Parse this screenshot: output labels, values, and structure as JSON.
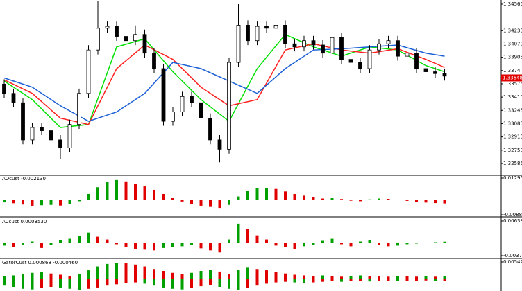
{
  "chart_data": [
    {
      "type": "candlestick",
      "open": [
        1.33571,
        1.33456,
        1.3334,
        1.32878,
        1.33032,
        1.32993,
        1.32878,
        1.32778,
        1.3307,
        1.33456,
        1.33995,
        1.34265,
        1.34288,
        1.34164,
        1.34111,
        1.34188,
        1.33956,
        1.33764,
        1.33109,
        1.33225,
        1.33417,
        1.3334,
        1.33148,
        1.32878,
        1.32762,
        1.33841,
        1.34303,
        1.34111,
        1.34288,
        1.34265,
        1.34303,
        1.34072,
        1.34033,
        1.34111,
        1.34057,
        1.33956,
        1.34149,
        1.33879,
        1.33841,
        1.33764,
        1.33995,
        1.34072,
        1.34111,
        1.33918,
        1.33956,
        1.33764,
        1.33725,
        1.33702
      ],
      "high": [
        1.33631,
        1.33516,
        1.334,
        1.33092,
        1.33092,
        1.33053,
        1.32938,
        1.3313,
        1.33516,
        1.34055,
        1.346,
        1.34348,
        1.34348,
        1.34224,
        1.343,
        1.34248,
        1.34016,
        1.33824,
        1.33285,
        1.33477,
        1.33477,
        1.334,
        1.33208,
        1.32938,
        1.33901,
        1.34565,
        1.34363,
        1.34348,
        1.34348,
        1.34363,
        1.34363,
        1.34132,
        1.34171,
        1.34171,
        1.34117,
        1.343,
        1.34209,
        1.33939,
        1.33901,
        1.34055,
        1.34132,
        1.34171,
        1.34171,
        1.34016,
        1.34016,
        1.33824,
        1.33785,
        1.33762
      ],
      "low": [
        1.33401,
        1.33285,
        1.32823,
        1.32823,
        1.32938,
        1.32823,
        1.3264,
        1.32723,
        1.33015,
        1.33401,
        1.3394,
        1.3421,
        1.34109,
        1.34056,
        1.34056,
        1.33901,
        1.33709,
        1.33054,
        1.33054,
        1.3317,
        1.33285,
        1.33093,
        1.32823,
        1.326,
        1.32707,
        1.33786,
        1.34056,
        1.34056,
        1.3421,
        1.3421,
        1.34017,
        1.33978,
        1.33978,
        1.34002,
        1.33901,
        1.33901,
        1.33824,
        1.337,
        1.33709,
        1.33709,
        1.3394,
        1.34017,
        1.33863,
        1.33863,
        1.33709,
        1.3367,
        1.33647,
        1.33616
      ],
      "close": [
        1.33456,
        1.3334,
        1.32878,
        1.33032,
        1.32993,
        1.32878,
        1.32778,
        1.3307,
        1.33456,
        1.33995,
        1.34265,
        1.34288,
        1.34164,
        1.34111,
        1.34188,
        1.33956,
        1.33764,
        1.33109,
        1.33225,
        1.33417,
        1.3334,
        1.33148,
        1.32878,
        1.32762,
        1.33841,
        1.34303,
        1.34111,
        1.34288,
        1.34265,
        1.34303,
        1.34072,
        1.34033,
        1.34111,
        1.34057,
        1.33956,
        1.34149,
        1.33879,
        1.33841,
        1.33764,
        1.33995,
        1.34072,
        1.34111,
        1.33918,
        1.33956,
        1.33764,
        1.33725,
        1.33702,
        1.33671
      ],
      "up_color": "#ffffff",
      "down_color": "#000000",
      "wick_color": "#000000",
      "overlays": [
        {
          "color": "#00e000",
          "x": [
            0,
            3,
            6,
            9,
            12,
            15,
            18,
            21,
            24,
            27,
            30,
            33,
            36,
            39,
            42,
            45,
            47
          ],
          "values": [
            1.3361,
            1.33379,
            1.33032,
            1.3307,
            1.34033,
            1.34134,
            1.33725,
            1.33379,
            1.33109,
            1.33764,
            1.34188,
            1.34033,
            1.33918,
            1.34033,
            1.33995,
            1.33802,
            1.33725
          ]
        },
        {
          "color": "#ff2020",
          "x": [
            0,
            3,
            6,
            9,
            12,
            15,
            18,
            21,
            24,
            27,
            30,
            33,
            36,
            39,
            42,
            45,
            47
          ],
          "values": [
            1.33625,
            1.33456,
            1.33148,
            1.3307,
            1.33764,
            1.34057,
            1.33879,
            1.33533,
            1.33302,
            1.33379,
            1.33995,
            1.34072,
            1.33995,
            1.33956,
            1.3401,
            1.33879,
            1.33779
          ]
        },
        {
          "color": "#1a5fd6",
          "x": [
            0,
            3,
            6,
            9,
            12,
            15,
            18,
            21,
            24,
            27,
            30,
            33,
            36,
            39,
            42,
            45,
            47
          ],
          "values": [
            1.33648,
            1.33533,
            1.33302,
            1.33109,
            1.33225,
            1.33456,
            1.33841,
            1.33764,
            1.3361,
            1.33456,
            1.33764,
            1.33995,
            1.3401,
            1.34033,
            1.34057,
            1.33956,
            1.33918
          ]
        }
      ],
      "current_price": 1.33648,
      "current_price_color": "#e00000",
      "ylim": [
        1.32464,
        1.34582
      ],
      "yticks": [
        1.34565,
        1.34235,
        {
          "value": 1.3407,
          "label": "1.34070"
        },
        1.33905,
        1.3374,
        1.33575,
        {
          "value": 1.3341,
          "label": "1.33410"
        },
        1.33245,
        {
          "value": 1.3308,
          "label": "1.33080"
        },
        1.32915,
        {
          "value": 1.3275,
          "label": "1.32750"
        },
        1.32585
      ]
    },
    {
      "type": "oscillator",
      "label": "AOcust -0.002130",
      "values": [
        -0.0015,
        -0.002,
        -0.0028,
        -0.0035,
        -0.0032,
        -0.003,
        -0.0034,
        -0.0024,
        -0.0008,
        0.0035,
        0.0075,
        0.0105,
        0.0118,
        0.011,
        0.0095,
        0.008,
        0.006,
        0.0035,
        0.001,
        -0.001,
        -0.0025,
        -0.0035,
        -0.0042,
        -0.0048,
        -0.003,
        0.002,
        0.0055,
        0.0068,
        0.0072,
        0.0065,
        0.005,
        0.0035,
        0.0025,
        0.0015,
        0.0008,
        0.001,
        0.0005,
        -0.0005,
        -0.0008,
        0.0003,
        0.0008,
        0.0006,
        -0.0002,
        -0.0006,
        -0.0012,
        -0.0016,
        -0.0019,
        -0.00213
      ],
      "rising_color": "#00a000",
      "falling_color": "#e00000",
      "ylim": [
        -0.00888,
        0.012966
      ],
      "yticks": [
        0.012966,
        {
          "value": -0.00888,
          "label": "-0.008880"
        }
      ]
    },
    {
      "type": "oscillator",
      "label": "ACcust 0.0003530",
      "values": [
        -0.0008,
        -0.0012,
        -0.0005,
        0.0004,
        -0.0015,
        -0.0006,
        0.0008,
        0.0012,
        0.002,
        0.003,
        0.0018,
        0.001,
        -0.0004,
        -0.0012,
        -0.0018,
        -0.002,
        -0.0022,
        -0.0015,
        -0.0012,
        -0.001,
        -0.0006,
        -0.0016,
        -0.0022,
        -0.0028,
        0.001,
        0.0056,
        0.004,
        0.0022,
        0.001,
        -0.0008,
        -0.0012,
        -0.0018,
        -0.001,
        -0.0006,
        0.0006,
        0.0012,
        -0.0004,
        -0.001,
        0.0004,
        0.0008,
        -0.0006,
        -0.001,
        -0.0008,
        -0.0004,
        -0.0002,
        0.0001,
        0.0002,
        0.000353
      ],
      "rising_color": "#00a000",
      "falling_color": "#e00000",
      "ylim": [
        -0.0037574,
        0.0063864
      ],
      "yticks": [
        0.0063864,
        -0.0037574
      ]
    },
    {
      "type": "gator",
      "label": "GatorCust 0.000868 -0.000460",
      "upper": [
        0.001,
        0.0012,
        0.0016,
        0.002,
        0.0022,
        0.0018,
        0.0014,
        0.001,
        0.0016,
        0.0028,
        0.004,
        0.0048,
        0.0052,
        0.005,
        0.0046,
        0.004,
        0.0032,
        0.0026,
        0.002,
        0.0016,
        0.002,
        0.0026,
        0.003,
        0.0024,
        0.0016,
        0.003,
        0.0036,
        0.0032,
        0.0028,
        0.0022,
        0.0018,
        0.0014,
        0.0012,
        0.001,
        0.0012,
        0.001,
        0.0008,
        0.001,
        0.0012,
        0.001,
        0.0009,
        0.0008,
        0.001,
        0.0009,
        0.0008,
        0.0009,
        0.0008,
        0.000868
      ],
      "lower": [
        -0.002,
        -0.0024,
        -0.003,
        -0.0032,
        -0.0028,
        -0.0024,
        -0.0026,
        -0.003,
        -0.0034,
        -0.003,
        -0.0026,
        -0.002,
        -0.0016,
        -0.0012,
        -0.001,
        -0.0014,
        -0.002,
        -0.0026,
        -0.003,
        -0.0032,
        -0.0028,
        -0.0022,
        -0.0018,
        -0.0024,
        -0.003,
        -0.0034,
        -0.0028,
        -0.002,
        -0.0014,
        -0.001,
        -0.0008,
        -0.001,
        -0.0012,
        -0.001,
        -0.0008,
        -0.0006,
        -0.0008,
        -0.0006,
        -0.0005,
        -0.0007,
        -0.0006,
        -0.0005,
        -0.0006,
        -0.0005,
        -0.0005,
        -0.0004,
        -0.0005,
        -0.00046
      ],
      "rising_color": "#00a000",
      "falling_color": "#e00000",
      "ylim": [
        -0.0037,
        0.005423
      ],
      "yticks": [
        0.005423
      ]
    }
  ]
}
